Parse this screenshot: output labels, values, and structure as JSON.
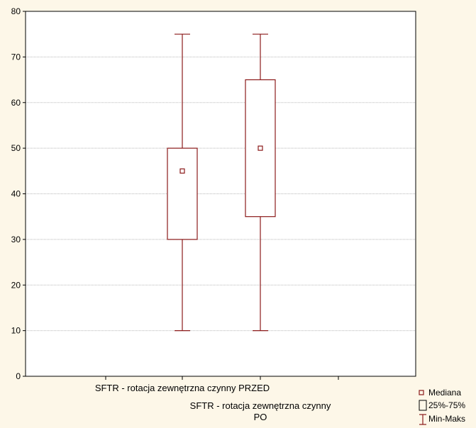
{
  "chart_data": {
    "type": "boxplot",
    "ylim": [
      0,
      80
    ],
    "yticks": [
      0,
      10,
      20,
      30,
      40,
      50,
      60,
      70,
      80
    ],
    "grid": true,
    "legend_position": "bottom-right",
    "category_label_lines": [
      [
        "SFTR - rotacja zewnętrzna czynny PRZED"
      ],
      [
        "SFTR - rotacja zewnętrzna czynny",
        "PO"
      ]
    ],
    "series": [
      {
        "category": "SFTR - rotacja zewnętrzna czynny PRZED",
        "min": 10,
        "q1": 30,
        "median": 45,
        "q3": 50,
        "max": 75
      },
      {
        "category": "SFTR - rotacja zewnętrzna czynny PO",
        "min": 10,
        "q1": 35,
        "median": 50,
        "q3": 65,
        "max": 75
      }
    ],
    "legend": {
      "median": "Mediana",
      "box": "25%-75%",
      "whisker": "Min-Maks"
    },
    "colors": {
      "background": "#fdf7e8",
      "plot_area": "#ffffff",
      "stroke": "#8b1a1a",
      "grid": "#b8b8b8",
      "axis": "#000000"
    }
  }
}
